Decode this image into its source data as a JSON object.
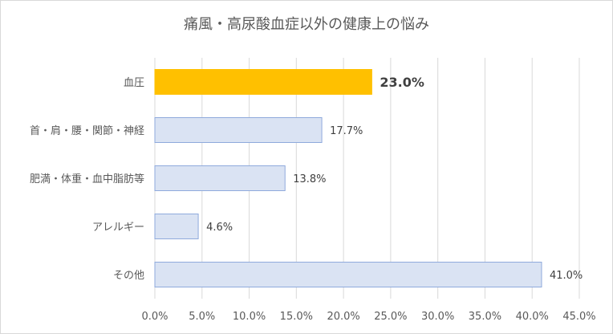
{
  "chart_data": {
    "type": "bar",
    "orientation": "horizontal",
    "title": "痛風・高尿酸血症以外の健康上の悩み",
    "categories": [
      "血圧",
      "首・肩・腰・関節・神経",
      "肥満・体重・血中脂肪等",
      "アレルギー",
      "その他"
    ],
    "values": [
      23.0,
      17.7,
      13.8,
      4.6,
      41.0
    ],
    "value_labels": [
      "23.0%",
      "17.7%",
      "13.8%",
      "4.6%",
      "41.0%"
    ],
    "highlight_index": 0,
    "xlim": [
      0,
      45
    ],
    "xticks": [
      "0.0%",
      "5.0%",
      "10.0%",
      "15.0%",
      "20.0%",
      "25.0%",
      "30.0%",
      "35.0%",
      "40.0%",
      "45.0%"
    ],
    "grid": true,
    "legend": "none",
    "colors": {
      "highlight_fill": "#FFC000",
      "bar_fill": "#DAE3F3",
      "bar_stroke": "#8FAADC",
      "grid": "#D9D9D9"
    }
  }
}
